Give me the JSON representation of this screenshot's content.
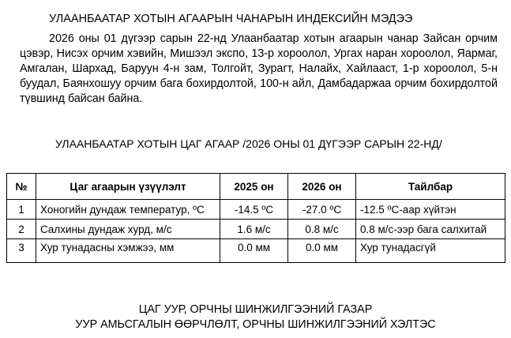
{
  "title": "УЛААНБААТАР ХОТЫН АГААРЫН ЧАНАРЫН ИНДЕКСИЙН МЭДЭЭ",
  "paragraph": "2026 оны 01 дүгээр сарын 22-нд Улаанбаатар хотын агаарын чанар Зайсан орчим цэвэр, Нисэх орчим хэвийн, Мишээл экспо, 13-р хороолол, Ургах наран хороолол, Яармаг, Амгалан, Шархад, Баруун 4-н зам, Толгойт,  Зурагт, Налайх, Хайлааст, 1-р хороолол, 5-н буудал, Баянхошуу орчим бага бохирдолтой, 100-н айл, Дамбадаржаа орчим бохирдолтой түвшинд байсан байна.",
  "table_title": "УЛААНБААТАР ХОТЫН ЦАГ АГААР /2026 ОНЫ 01 ДҮГЭЭР САРЫН 22-НД/",
  "table": {
    "headers": [
      "№",
      "Цаг агаарын үзүүлэлт",
      "2025 он",
      "2026 он",
      "Тайлбар"
    ],
    "rows": [
      [
        "1",
        "Хоногийн дундаж температур, ºC",
        "-14.5 ºC",
        "-27.0 ºC",
        "-12.5 ºC-аар хүйтэн"
      ],
      [
        "2",
        "Салхины дундаж хурд, м/с",
        "1.6 м/с",
        "0.8 м/с",
        "0.8 м/с-ээр бага салхитай"
      ],
      [
        "3",
        "Хур тунадасны хэмжээ, мм",
        "0.0 мм",
        "0.0 мм",
        "Хур тунадасгүй"
      ]
    ]
  },
  "footer": {
    "line1": "ЦАГ УУР, ОРЧНЫ ШИНЖИЛГЭЭНИЙ ГАЗАР",
    "line2": "УУР АМЬСГАЛЫН ӨӨРЧЛӨЛТ, ОРЧНЫ ШИНЖИЛГЭЭНИЙ ХЭЛТЭС"
  }
}
